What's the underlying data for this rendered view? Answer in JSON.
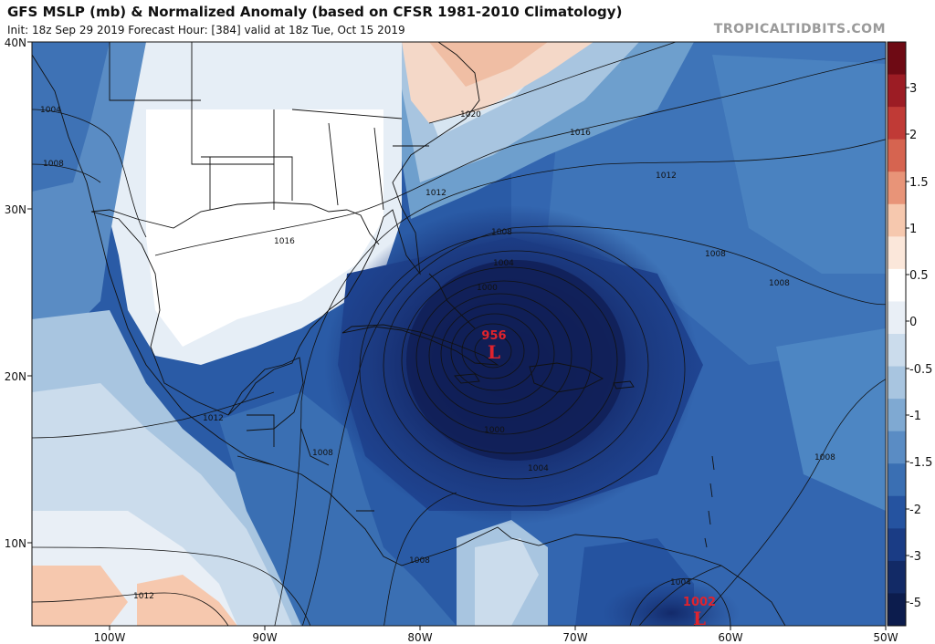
{
  "header": {
    "title": "GFS MSLP (mb) & Normalized Anomaly (based on CFSR 1981-2010 Climatology)",
    "subtitle": "Init: 18z Sep 29 2019   Forecast Hour: [384]   valid at 18z Tue, Oct 15 2019",
    "brand": "TROPICALTIDBITS.COM"
  },
  "axes": {
    "lat_labels": [
      "40N",
      "30N",
      "20N",
      "10N"
    ],
    "lon_labels": [
      "100W",
      "90W",
      "80W",
      "70W",
      "60W",
      "50W"
    ]
  },
  "colorbar": {
    "labels": [
      "3",
      "2",
      "1.5",
      "1",
      "0.5",
      "0",
      "-0.5",
      "-1",
      "-1.5",
      "-2",
      "-3",
      "-5"
    ],
    "colors": [
      "#6e0a14",
      "#9c1c24",
      "#c03a36",
      "#d66450",
      "#e89478",
      "#f6c8ae",
      "#fbe7da",
      "#ffffff",
      "#e9eff6",
      "#cbdcec",
      "#a8c5e0",
      "#7fa9d2",
      "#5a8cc4",
      "#3a6fb3",
      "#2553a0",
      "#1a3c85",
      "#122a66",
      "#0c1c4d"
    ]
  },
  "systems": [
    {
      "symbol": "L",
      "pressure": "956",
      "color": "#e0232d"
    },
    {
      "symbol": "L",
      "pressure": "1002",
      "color": "#e0232d"
    }
  ],
  "isobar_labels": [
    "1004",
    "1008",
    "1020",
    "1016",
    "1012",
    "1012",
    "1016",
    "1008",
    "1004",
    "1000",
    "1008",
    "1008",
    "1012",
    "1008",
    "1000",
    "1004",
    "1008",
    "1008",
    "1012",
    "1004",
    "1008"
  ]
}
